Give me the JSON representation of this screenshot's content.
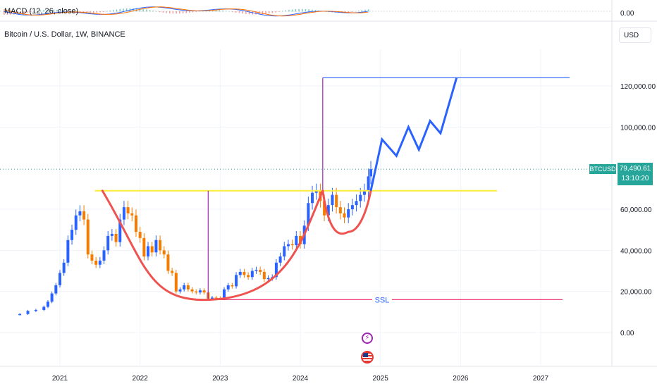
{
  "macd": {
    "label": "MACD (12, 26, close)",
    "zero_label": "0.00"
  },
  "header": {
    "symbol_title": "Bitcoin / U.S. Dollar, 1W, BINANCE",
    "currency": "USD"
  },
  "price_badge": {
    "symbol": "BTCUSD",
    "price": "79,490.61",
    "countdown": "13:10:20"
  },
  "colors": {
    "up": "#26a69a",
    "down": "#ef5350",
    "candle_up": "#2962ff",
    "candle_down": "#f57c00",
    "resistance": "#ffeb3b",
    "cup": "#ef5350",
    "projection": "#2962ff",
    "vertical_marker": "#9c27b0",
    "ssl_line": "#e91e63"
  },
  "icons": [
    "lightning-icon",
    "us-flag-icon"
  ],
  "chart_data": {
    "type": "line",
    "title": "Bitcoin / U.S. Dollar, 1W, BINANCE",
    "xlabel": "",
    "ylabel": "",
    "ylim": [
      -10000,
      135000
    ],
    "y_ticks": [
      "0.00",
      "20,000.00",
      "40,000.00",
      "60,000.00",
      "100,000.00",
      "120,000.00"
    ],
    "x_ticks": [
      "2021",
      "2022",
      "2023",
      "2024",
      "2025",
      "2026",
      "2027"
    ],
    "series": [
      {
        "type": "price",
        "x": [
          2020.5,
          2020.6,
          2020.7,
          2020.8,
          2020.85,
          2020.9,
          2020.95,
          2021.0,
          2021.05,
          2021.1,
          2021.15,
          2021.2,
          2021.25,
          2021.3,
          2021.35,
          2021.4,
          2021.45,
          2021.5,
          2021.55,
          2021.6,
          2021.65,
          2021.7,
          2021.75,
          2021.8,
          2021.85,
          2021.9,
          2021.95,
          2022.0,
          2022.05,
          2022.1,
          2022.15,
          2022.2,
          2022.25,
          2022.3,
          2022.35,
          2022.4,
          2022.45,
          2022.5,
          2022.55,
          2022.6,
          2022.65,
          2022.7,
          2022.75,
          2022.8,
          2022.85,
          2022.9,
          2022.95,
          2023.0,
          2023.05,
          2023.1,
          2023.15,
          2023.2,
          2023.25,
          2023.3,
          2023.35,
          2023.4,
          2023.45,
          2023.5,
          2023.55,
          2023.6,
          2023.65,
          2023.7,
          2023.75,
          2023.8,
          2023.85,
          2023.9,
          2023.95,
          2024.0,
          2024.05,
          2024.1,
          2024.15,
          2024.2,
          2024.25,
          2024.3,
          2024.35,
          2024.4,
          2024.45,
          2024.5,
          2024.55,
          2024.6,
          2024.65,
          2024.7,
          2024.75,
          2024.8,
          2024.85,
          2024.88
        ],
        "values": [
          9000,
          10500,
          11000,
          12500,
          15000,
          19000,
          23000,
          29000,
          34000,
          45000,
          50000,
          57000,
          59000,
          55000,
          38000,
          35000,
          33000,
          35000,
          40000,
          47000,
          48000,
          44000,
          55000,
          61000,
          58000,
          57000,
          49000,
          46000,
          37000,
          42000,
          39000,
          45000,
          40000,
          38000,
          30000,
          29000,
          20000,
          21000,
          23000,
          21000,
          20000,
          19500,
          20500,
          19500,
          16500,
          17000,
          16800,
          16600,
          21000,
          23000,
          22500,
          28000,
          29500,
          28000,
          27000,
          30000,
          30500,
          29500,
          26000,
          26500,
          27000,
          34000,
          37000,
          42000,
          43000,
          42500,
          47000,
          43000,
          52000,
          63000,
          68000,
          69000,
          64000,
          57000,
          62000,
          67000,
          61000,
          58000,
          56000,
          60000,
          62000,
          64000,
          67000,
          69000,
          76000,
          79490
        ]
      },
      {
        "type": "projection",
        "x": [
          2024.88,
          2025.02,
          2025.2,
          2025.35,
          2025.48,
          2025.62,
          2025.75,
          2025.95
        ],
        "values": [
          69000,
          94000,
          86000,
          100000,
          89000,
          103000,
          97000,
          124000
        ]
      }
    ],
    "annotations": {
      "resistance_level": 69000,
      "resistance_x": [
        2021.7,
        2024.88
      ],
      "target_level": 124000,
      "target_x": [
        2024.28,
        2025.95
      ],
      "support_level": 16000,
      "support_x": [
        2022.88,
        2027.3
      ],
      "support_label": "SSL",
      "cup_x": [
        2021.75,
        2022.88,
        2024.28
      ],
      "cup_values": [
        69000,
        16000,
        69000
      ],
      "handle_x": [
        2024.28,
        2024.6,
        2024.88
      ],
      "handle_values": [
        69000,
        49000,
        69000
      ],
      "vertical_markers": [
        {
          "x": 2022.85,
          "from": 16000,
          "to": 69000
        },
        {
          "x": 2024.28,
          "from": 69000,
          "to": 124000
        }
      ],
      "current_price": 79490.61
    }
  }
}
